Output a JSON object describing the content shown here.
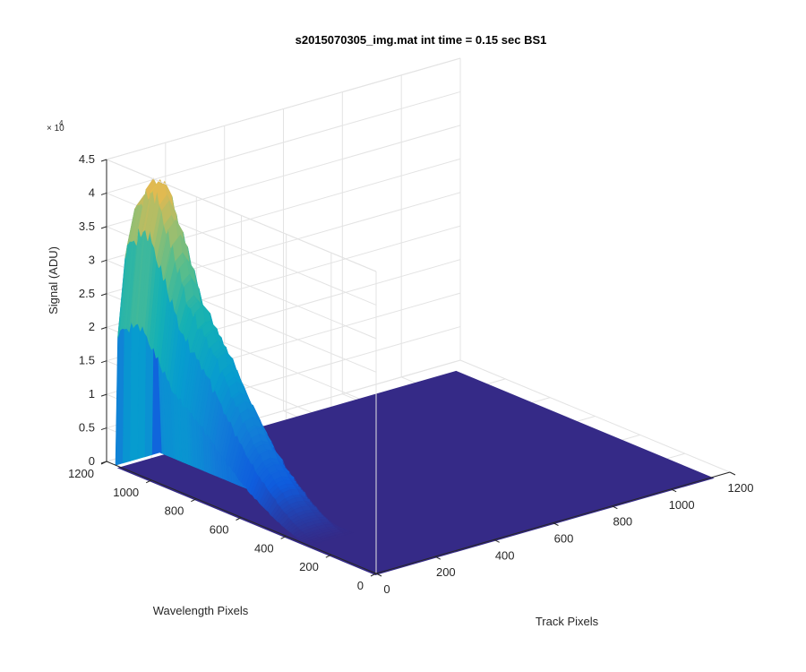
{
  "chart_data": {
    "type": "surface",
    "title": "s2015070305_img.mat int time = 0.15 sec   BS1",
    "xlabel": "Track Pixels",
    "ylabel": "Wavelength Pixels",
    "zlabel": "Signal (ADU)",
    "z_exponent_base": "× 10",
    "z_exponent_power": "4",
    "xlim": [
      0,
      1200
    ],
    "ylim": [
      0,
      1200
    ],
    "zlim": [
      0,
      45000
    ],
    "x_ticks": [
      "0",
      "200",
      "400",
      "600",
      "800",
      "1000",
      "1200"
    ],
    "y_ticks": [
      "0",
      "200",
      "400",
      "600",
      "800",
      "1000",
      "1200"
    ],
    "z_ticks": [
      "0",
      "0.5",
      "1",
      "1.5",
      "2",
      "2.5",
      "3",
      "3.5",
      "4",
      "4.5"
    ],
    "grid": true,
    "colormap": "parula",
    "colors": {
      "floor": "#352a87",
      "grid": "#e3e3e3",
      "axis": "#262626"
    },
    "surface": {
      "track_start": 0,
      "track_end": 150,
      "wavelength_start": 300,
      "wavelength_end": 1160,
      "peak_profile": [
        {
          "wavelength": 1160,
          "signal": 0
        },
        {
          "wavelength": 1150,
          "signal": 38000
        },
        {
          "wavelength": 1100,
          "signal": 41000
        },
        {
          "wavelength": 1050,
          "signal": 43000
        },
        {
          "wavelength": 1000,
          "signal": 38000
        },
        {
          "wavelength": 950,
          "signal": 33000
        },
        {
          "wavelength": 900,
          "signal": 27500
        },
        {
          "wavelength": 850,
          "signal": 25000
        },
        {
          "wavelength": 800,
          "signal": 22500
        },
        {
          "wavelength": 750,
          "signal": 19500
        },
        {
          "wavelength": 700,
          "signal": 16000
        },
        {
          "wavelength": 650,
          "signal": 13000
        },
        {
          "wavelength": 600,
          "signal": 10000
        },
        {
          "wavelength": 550,
          "signal": 7500
        },
        {
          "wavelength": 500,
          "signal": 5500
        },
        {
          "wavelength": 450,
          "signal": 3500
        },
        {
          "wavelength": 400,
          "signal": 2000
        },
        {
          "wavelength": 350,
          "signal": 800
        },
        {
          "wavelength": 300,
          "signal": 0
        }
      ]
    }
  }
}
